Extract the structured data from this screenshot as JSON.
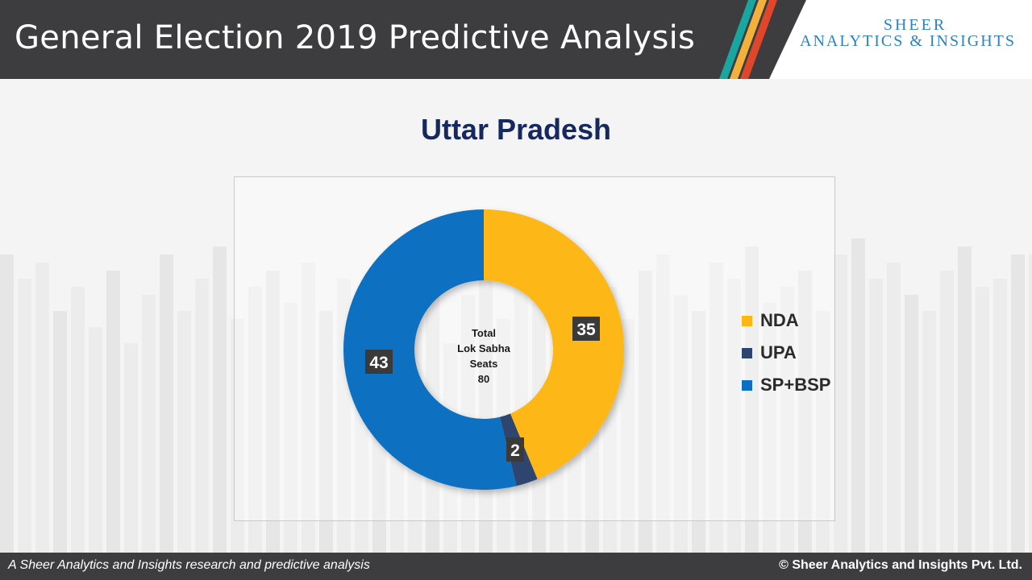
{
  "header": {
    "title": "General Election 2019 Predictive Analysis",
    "logo_line1": "SHEER",
    "logo_line2": "ANALYTICS & INSIGHTS"
  },
  "chart_data": {
    "type": "pie",
    "variant": "donut",
    "title": "Uttar Pradesh",
    "center_label": [
      "Total",
      "Lok Sabha",
      "Seats",
      "80"
    ],
    "categories": [
      "NDA",
      "UPA",
      "SP+BSP"
    ],
    "values": [
      35,
      2,
      43
    ],
    "colors": [
      "#fdb714",
      "#2e4470",
      "#0c6fc1"
    ],
    "legend_position": "right"
  },
  "footer": {
    "left": "A Sheer Analytics and Insights research and predictive analysis",
    "right": "© Sheer Analytics and Insights Pvt. Ltd."
  }
}
